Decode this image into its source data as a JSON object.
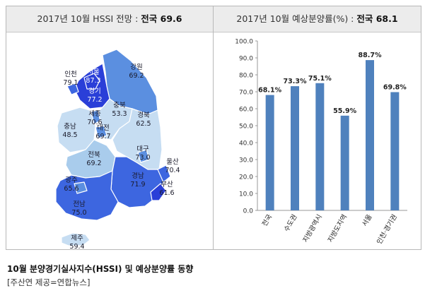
{
  "map": {
    "title_prefix": "2017년 10월 HSSI 전망 : ",
    "title_strong": "전국 69.6",
    "regions": [
      {
        "name": "서울",
        "value": "87.3"
      },
      {
        "name": "인천",
        "value": "79.1"
      },
      {
        "name": "경기",
        "value": "77.2"
      },
      {
        "name": "강원",
        "value": "69.2"
      },
      {
        "name": "충북",
        "value": "53.3"
      },
      {
        "name": "세종",
        "value": "70.6"
      },
      {
        "name": "충남",
        "value": "48.5"
      },
      {
        "name": "대전",
        "value": "69.7"
      },
      {
        "name": "경북",
        "value": "62.5"
      },
      {
        "name": "전북",
        "value": "69.2"
      },
      {
        "name": "대구",
        "value": "73.0"
      },
      {
        "name": "울산",
        "value": "70.4"
      },
      {
        "name": "경남",
        "value": "71.9"
      },
      {
        "name": "광주",
        "value": "65.6"
      },
      {
        "name": "부산",
        "value": "61.6"
      },
      {
        "name": "전남",
        "value": "75.0"
      },
      {
        "name": "제주",
        "value": "59.4"
      }
    ],
    "colors": {
      "very_light": "#c6ddf2",
      "light": "#a9ccec",
      "mid": "#5b8fe0",
      "strong": "#3d66e0",
      "deep": "#2a3fd8"
    }
  },
  "chart_data": {
    "type": "bar",
    "title_prefix": "2017년 10월  예상분양률(%) : ",
    "title_strong": "전국 68.1",
    "categories": [
      "전국",
      "수도권",
      "지방광역시",
      "지방도지역",
      "서울",
      "인천·경기권"
    ],
    "values": [
      68.1,
      73.3,
      75.1,
      55.9,
      88.7,
      69.8
    ],
    "value_labels": [
      "68.1%",
      "73.3%",
      "75.1%",
      "55.9%",
      "88.7%",
      "69.8%"
    ],
    "ylim": [
      0,
      100
    ],
    "yticks": [
      "0.0",
      "10.0",
      "20.0",
      "30.0",
      "40.0",
      "50.0",
      "60.0",
      "70.0",
      "80.0",
      "90.0",
      "100.0"
    ],
    "bar_color": "#4f81bd",
    "grid": false
  },
  "caption": {
    "main": "10월 분양경기실사지수(HSSI) 및 예상분양률 동향",
    "source": "[주산연 제공=연합뉴스]"
  }
}
